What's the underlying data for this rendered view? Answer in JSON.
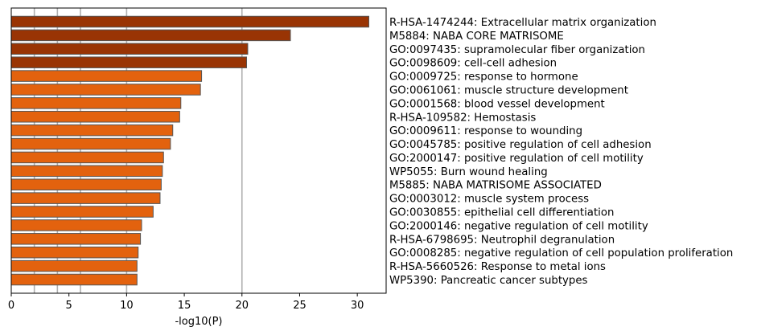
{
  "chart_data": {
    "type": "bar",
    "orientation": "horizontal",
    "xlabel": "-log10(P)",
    "xlim": [
      0,
      32.5
    ],
    "xticks": [
      0,
      5,
      10,
      15,
      20,
      25,
      30
    ],
    "grid_lines_x": [
      2,
      4,
      6,
      10,
      20
    ],
    "categories": [
      "R-HSA-1474244: Extracellular matrix organization",
      "M5884: NABA CORE MATRISOME",
      "GO:0097435: supramolecular fiber organization",
      "GO:0098609: cell-cell adhesion",
      "GO:0009725: response to hormone",
      "GO:0061061: muscle structure development",
      "GO:0001568: blood vessel development",
      "R-HSA-109582: Hemostasis",
      "GO:0009611: response to wounding",
      "GO:0045785: positive regulation of cell adhesion",
      "GO:2000147: positive regulation of cell motility",
      "WP5055: Burn wound healing",
      "M5885: NABA MATRISOME ASSOCIATED",
      "GO:0003012: muscle system process",
      "GO:0030855: epithelial cell differentiation",
      "GO:2000146: negative regulation of cell motility",
      "R-HSA-6798695: Neutrophil degranulation",
      "GO:0008285: negative regulation of cell population proliferation",
      "R-HSA-5660526: Response to metal ions",
      "WP5390: Pancreatic cancer subtypes"
    ],
    "values": [
      31.0,
      24.2,
      20.5,
      20.4,
      16.5,
      16.4,
      14.7,
      14.6,
      14.0,
      13.8,
      13.2,
      13.1,
      13.0,
      12.9,
      12.3,
      11.3,
      11.2,
      11.0,
      10.9,
      10.9
    ],
    "colors": {
      "dark_bar": "#993404",
      "light_bar": "#e3620e",
      "bar_edge": "#555555",
      "grid": "#b0b0b0"
    },
    "dark_bar_count": 4
  }
}
